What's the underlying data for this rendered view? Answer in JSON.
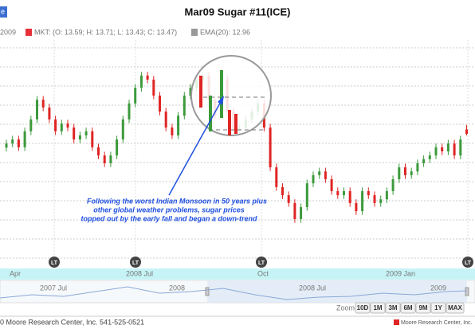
{
  "chart_data": {
    "type": "candlestick",
    "title": "Mar09 Sugar #11(ICE)",
    "corner_tab": "e",
    "date_label": "2009",
    "series": [
      {
        "name": "MKT: (O: 13.59; H: 13.71; L: 13.43; C: 13.47)",
        "color": "#e8303a",
        "up_color": "#3c9a3c",
        "down_color": "#e02424",
        "open": [
          13.1,
          13.21,
          13.32,
          13.11,
          13.54,
          13.86,
          14.39,
          14.18,
          13.86,
          13.54,
          13.75,
          13.64,
          13.32,
          13.43,
          13.54,
          13.11,
          12.89,
          12.68,
          12.89,
          13.32,
          13.86,
          14.29,
          14.71,
          15.04,
          14.93,
          14.5,
          14.07,
          13.64,
          13.43,
          13.96,
          14.5,
          14.71,
          14.93,
          15.04,
          14.39,
          13.96,
          14.93,
          14.07,
          13.54,
          13.64,
          13.86,
          14.07,
          14.29,
          13.64,
          12.57,
          12.04,
          11.82,
          11.61,
          11.18,
          11.5,
          12.14,
          12.36,
          12.46,
          12.25,
          11.93,
          11.82,
          11.93,
          11.61,
          11.39,
          11.93,
          11.82,
          11.61,
          11.71,
          11.93,
          12.25,
          12.57,
          12.36,
          12.46,
          12.68,
          12.79,
          12.89,
          13.11,
          13.0,
          13.21,
          12.89,
          13.59
        ],
        "high": [
          13.31,
          13.42,
          13.42,
          13.64,
          13.96,
          14.49,
          14.49,
          14.28,
          13.96,
          13.85,
          13.85,
          13.74,
          13.53,
          13.64,
          13.64,
          13.21,
          12.99,
          12.99,
          13.42,
          13.96,
          14.39,
          14.81,
          15.14,
          15.14,
          15.03,
          14.6,
          14.17,
          13.74,
          14.06,
          14.6,
          14.81,
          15.03,
          15.14,
          15.14,
          14.49,
          15.03,
          15.03,
          14.17,
          13.74,
          13.96,
          14.17,
          14.39,
          14.39,
          13.74,
          12.67,
          12.14,
          11.92,
          11.71,
          11.6,
          12.24,
          12.46,
          12.56,
          12.56,
          12.35,
          12.03,
          12.03,
          12.03,
          11.71,
          12.03,
          12.03,
          11.92,
          11.81,
          12.03,
          12.35,
          12.67,
          12.67,
          12.56,
          12.78,
          12.89,
          12.99,
          13.21,
          13.21,
          13.31,
          13.31,
          13.42,
          13.71
        ],
        "low": [
          13.0,
          13.11,
          13.01,
          13.01,
          13.44,
          13.76,
          14.08,
          13.76,
          13.44,
          13.44,
          13.54,
          13.22,
          13.22,
          13.33,
          13.01,
          12.79,
          12.58,
          12.58,
          12.79,
          13.22,
          13.76,
          14.19,
          14.61,
          14.83,
          14.4,
          13.97,
          13.54,
          13.33,
          13.33,
          13.86,
          14.4,
          14.61,
          14.83,
          14.29,
          13.86,
          13.86,
          13.97,
          13.44,
          13.44,
          13.54,
          13.76,
          13.97,
          13.54,
          12.47,
          11.94,
          11.72,
          11.51,
          11.08,
          11.08,
          11.4,
          12.04,
          12.26,
          12.15,
          11.83,
          11.72,
          11.72,
          11.51,
          11.29,
          11.29,
          11.72,
          11.51,
          11.51,
          11.61,
          11.83,
          12.15,
          12.26,
          12.26,
          12.36,
          12.58,
          12.69,
          12.79,
          12.9,
          12.9,
          12.79,
          12.79,
          13.43
        ],
        "close": [
          13.21,
          13.32,
          13.11,
          13.54,
          13.86,
          14.39,
          14.18,
          13.86,
          13.54,
          13.75,
          13.64,
          13.32,
          13.43,
          13.54,
          13.11,
          12.89,
          12.68,
          12.89,
          13.32,
          13.86,
          14.29,
          14.71,
          15.04,
          14.93,
          14.5,
          14.07,
          13.64,
          13.43,
          13.96,
          14.5,
          14.71,
          14.93,
          15.04,
          14.39,
          13.96,
          14.93,
          14.07,
          13.54,
          13.64,
          13.86,
          14.07,
          14.29,
          13.64,
          12.57,
          12.04,
          11.82,
          11.61,
          11.18,
          11.5,
          12.14,
          12.36,
          12.46,
          12.25,
          11.93,
          11.82,
          11.93,
          11.61,
          11.39,
          11.93,
          11.82,
          11.61,
          11.71,
          11.93,
          12.25,
          12.57,
          12.36,
          12.46,
          12.68,
          12.79,
          12.89,
          13.11,
          13.0,
          13.21,
          12.89,
          13.32,
          13.47
        ]
      }
    ],
    "ema_legend": {
      "name": "EMA(20): 12.96",
      "color": "#999999"
    },
    "ylim": [
      10,
      16
    ],
    "xticks": [
      "Apr",
      "2008 Jul",
      "Oct",
      "2009 Jan"
    ],
    "events": [
      "LT",
      "LT",
      "LT",
      "LT"
    ],
    "annotation": [
      "Following the worst Indian Monsoon in 50 years plus",
      "other global weather problems, sugar prices",
      "topped out by the early fall and began a down-trend"
    ],
    "navigator_labels": [
      "2007 Jul",
      "2008",
      "2008 Jul",
      "2009"
    ],
    "zoom_label": "Zoom:",
    "zoom_buttons": [
      "10D",
      "1M",
      "3M",
      "6M",
      "9M",
      "1Y",
      "MAX"
    ],
    "footer_left": "0 Moore Research Center, Inc. 541-525-0521",
    "footer_right": "Moore Research Center, Inc."
  }
}
